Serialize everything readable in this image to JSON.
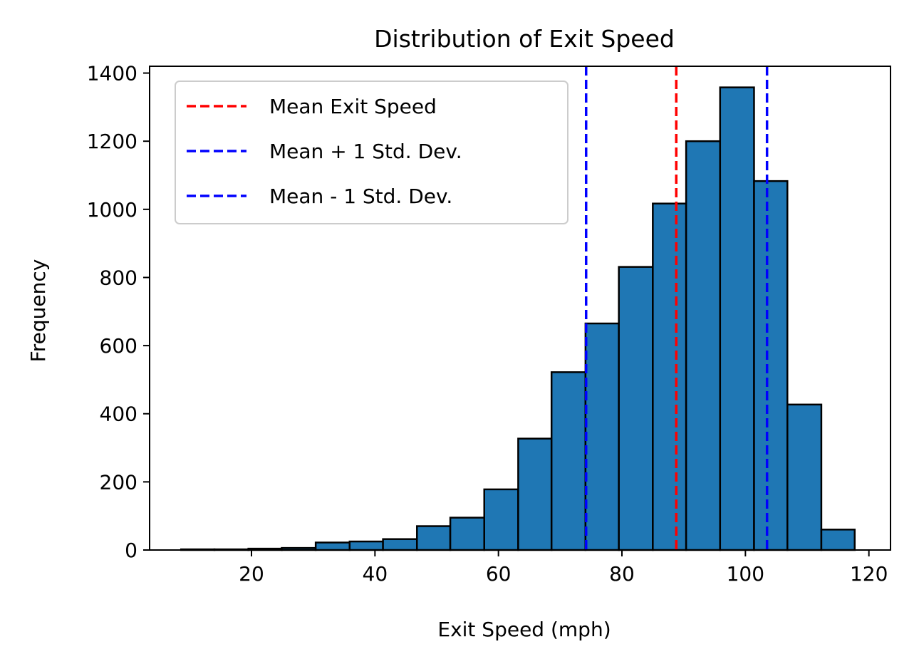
{
  "chart_data": {
    "type": "bar",
    "title": "Distribution of Exit Speed",
    "xlabel": "Exit Speed (mph)",
    "ylabel": "Frequency",
    "xlim": [
      3.5,
      123.5
    ],
    "ylim": [
      0,
      1420
    ],
    "xticks": [
      20,
      40,
      60,
      80,
      100,
      120
    ],
    "yticks": [
      0,
      200,
      400,
      600,
      800,
      1000,
      1200,
      1400
    ],
    "bin_edges": [
      8.6,
      14.0,
      19.5,
      24.9,
      30.4,
      35.9,
      41.3,
      46.8,
      52.2,
      57.7,
      63.2,
      68.6,
      74.1,
      79.5,
      85.0,
      90.4,
      95.9,
      101.4,
      106.8,
      112.3,
      117.7
    ],
    "values": [
      2,
      2,
      4,
      6,
      22,
      25,
      32,
      70,
      95,
      178,
      327,
      522,
      665,
      831,
      1017,
      1200,
      1358,
      1083,
      427,
      60
    ],
    "bar_color": "#1f77b4",
    "edge_color": "#000000",
    "lines": [
      {
        "label": "Mean Exit Speed",
        "x": 88.8,
        "color": "#ff0000"
      },
      {
        "label": "Mean + 1 Std. Dev.",
        "x": 103.5,
        "color": "#0000ff"
      },
      {
        "label": "Mean - 1 Std. Dev.",
        "x": 74.2,
        "color": "#0000ff"
      }
    ],
    "legend_position": "upper-left",
    "grid": false
  }
}
